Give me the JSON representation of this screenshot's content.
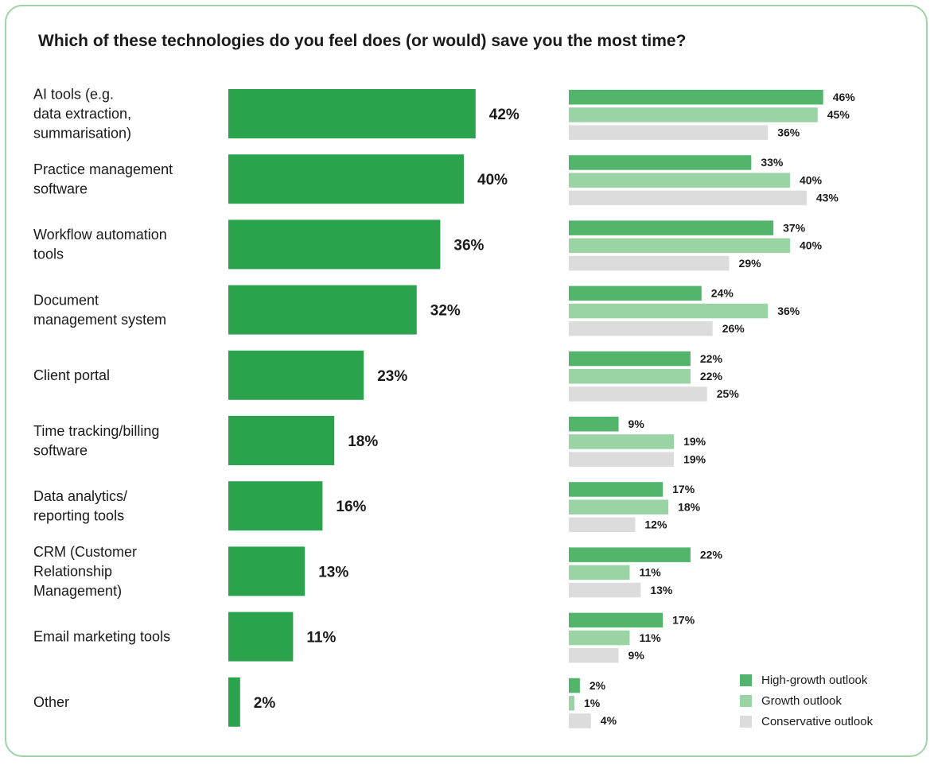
{
  "chart_data": {
    "type": "bar",
    "title": "Which of these technologies do you feel does (or would) save you the most time?",
    "categories": [
      [
        "AI tools (e.g.",
        "data extraction,",
        "summarisation)"
      ],
      [
        "Practice management",
        "software"
      ],
      [
        "Workflow automation",
        "tools"
      ],
      [
        "Document",
        "management system"
      ],
      [
        "Client portal"
      ],
      [
        "Time tracking/billing",
        "software"
      ],
      [
        "Data analytics/",
        "reporting tools"
      ],
      [
        "CRM (Customer",
        "Relationship",
        "Management)"
      ],
      [
        "Email marketing tools"
      ],
      [
        "Other"
      ]
    ],
    "overall": {
      "values": [
        42,
        40,
        36,
        32,
        23,
        18,
        16,
        13,
        11,
        2
      ],
      "color": "#2ba24c"
    },
    "series": [
      {
        "name": "High-growth outlook",
        "color": "#52b56b",
        "values": [
          46,
          33,
          37,
          24,
          22,
          9,
          17,
          22,
          17,
          2
        ]
      },
      {
        "name": "Growth outlook",
        "color": "#9ad4a4",
        "values": [
          45,
          40,
          40,
          36,
          22,
          19,
          18,
          11,
          11,
          1
        ]
      },
      {
        "name": "Conservative outlook",
        "color": "#dcdcdc",
        "values": [
          36,
          43,
          29,
          26,
          25,
          19,
          12,
          13,
          9,
          4
        ]
      }
    ],
    "value_suffix": "%",
    "legend_position": "bottom-right",
    "grid": false
  }
}
